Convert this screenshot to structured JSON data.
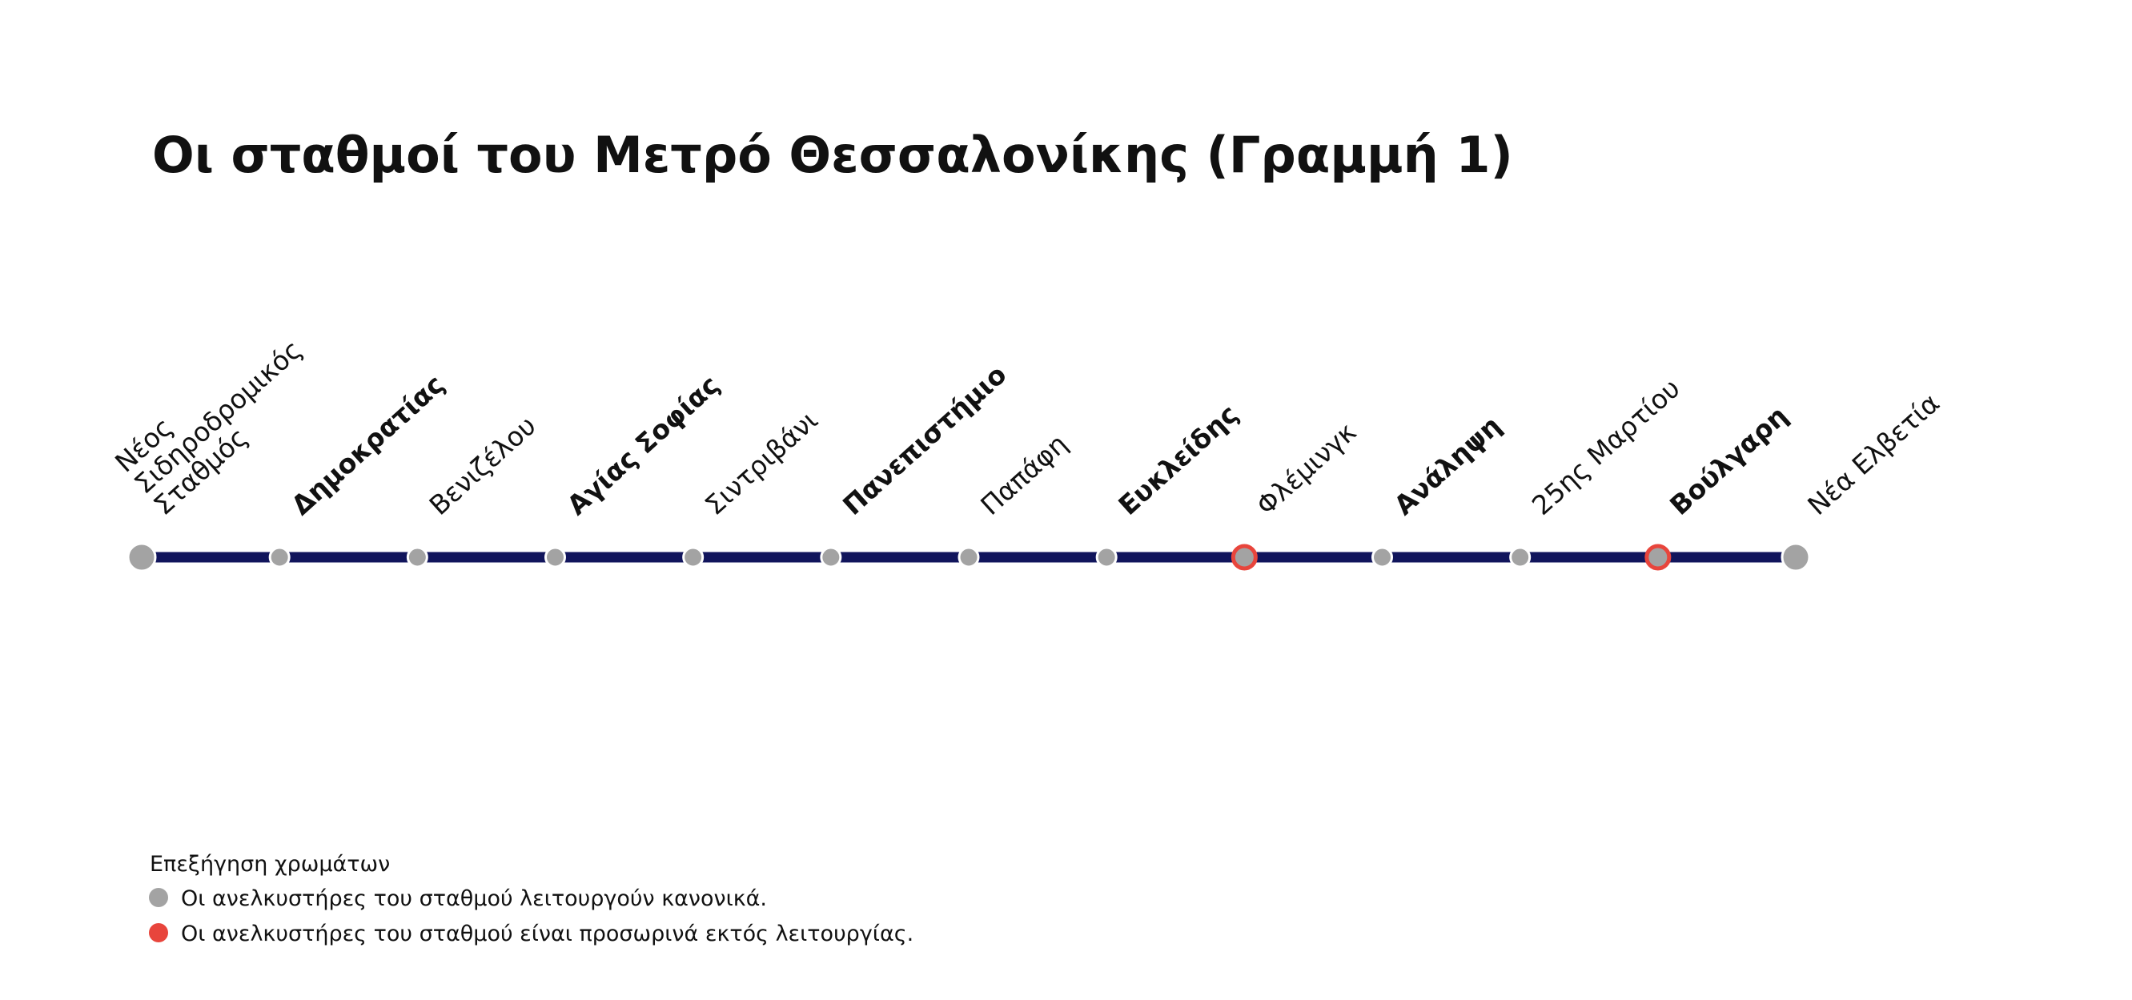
{
  "title": "Οι σταθμοί του Μετρό Θεσσαλονίκης (Γραμμή 1)",
  "line_color": "#11155c",
  "stations": [
    {
      "label_lines": [
        "Νέος",
        "Σιδηροδρομικός",
        "Σταθμός"
      ],
      "weight": "normal",
      "color": "#a3a3a3",
      "ring": null
    },
    {
      "label_lines": [
        "Δημοκρατίας"
      ],
      "weight": "bold",
      "color": "#a3a3a3",
      "ring": null
    },
    {
      "label_lines": [
        "Βενιζέλου"
      ],
      "weight": "normal",
      "color": "#a3a3a3",
      "ring": null
    },
    {
      "label_lines": [
        "Αγίας Σοφίας"
      ],
      "weight": "bold",
      "color": "#a3a3a3",
      "ring": null
    },
    {
      "label_lines": [
        "Σιντριβάνι"
      ],
      "weight": "normal",
      "color": "#a3a3a3",
      "ring": null
    },
    {
      "label_lines": [
        "Πανεπιστήμιο"
      ],
      "weight": "bold",
      "color": "#a3a3a3",
      "ring": null
    },
    {
      "label_lines": [
        "Παπάφη"
      ],
      "weight": "normal",
      "color": "#a3a3a3",
      "ring": null
    },
    {
      "label_lines": [
        "Ευκλείδης"
      ],
      "weight": "bold",
      "color": "#a3a3a3",
      "ring": null
    },
    {
      "label_lines": [
        "Φλέμινγκ"
      ],
      "weight": "normal",
      "color": "#a3a3a3",
      "ring": "#e8453c"
    },
    {
      "label_lines": [
        "Ανάληψη"
      ],
      "weight": "bold",
      "color": "#a3a3a3",
      "ring": null
    },
    {
      "label_lines": [
        "25ης Μαρτίου"
      ],
      "weight": "normal",
      "color": "#a3a3a3",
      "ring": null
    },
    {
      "label_lines": [
        "Βούλγαρη"
      ],
      "weight": "bold",
      "color": "#a3a3a3",
      "ring": "#e8453c"
    },
    {
      "label_lines": [
        "Νέα Ελβετία"
      ],
      "weight": "normal",
      "color": "#a3a3a3",
      "ring": null
    }
  ],
  "legend": {
    "title": "Επεξήγηση χρωμάτων",
    "items": [
      {
        "color": "#a3a3a3",
        "text": "Οι ανελκυστήρες του σταθμού λειτουργούν κανονικά."
      },
      {
        "color": "#e8453c",
        "text": "Οι ανελκυστήρες του σταθμού είναι προσωρινά εκτός λειτουργίας."
      }
    ]
  }
}
